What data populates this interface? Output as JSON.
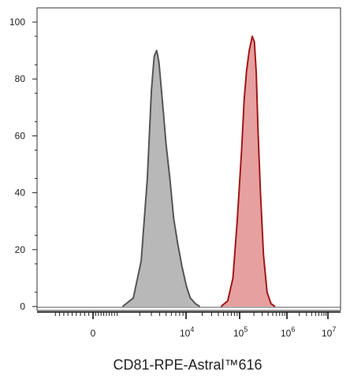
{
  "chart_data": {
    "type": "area",
    "title": "",
    "xlabel": "CD81-RPE-Astral™616",
    "ylabel": "",
    "x_scale": "biexponential",
    "x_tick_labels": [
      {
        "value": 0,
        "base": "0",
        "exp": ""
      },
      {
        "value": 10000,
        "base": "10",
        "exp": "4"
      },
      {
        "value": 100000,
        "base": "10",
        "exp": "5"
      },
      {
        "value": 1000000,
        "base": "10",
        "exp": "6"
      },
      {
        "value": 10000000,
        "base": "10",
        "exp": "7"
      }
    ],
    "ylim": [
      0,
      105
    ],
    "y_ticks": [
      0,
      20,
      40,
      60,
      80,
      100
    ],
    "grid": false,
    "legend": "none",
    "series": [
      {
        "color": "#555555",
        "fill": "#b8b8b8",
        "points": [
          [
            1100,
            0
          ],
          [
            1600,
            3
          ],
          [
            2100,
            16
          ],
          [
            2600,
            45
          ],
          [
            3000,
            76
          ],
          [
            3300,
            88
          ],
          [
            3600,
            90
          ],
          [
            3900,
            86
          ],
          [
            4400,
            72
          ],
          [
            5000,
            57
          ],
          [
            5700,
            45
          ],
          [
            6500,
            31
          ],
          [
            7500,
            22
          ],
          [
            8700,
            14
          ],
          [
            10200,
            7
          ],
          [
            12000,
            3
          ],
          [
            15000,
            1
          ],
          [
            18000,
            0
          ]
        ]
      },
      {
        "color": "#a01818",
        "fill": "#e6a0a0",
        "points": [
          [
            45000,
            0
          ],
          [
            60000,
            2
          ],
          [
            75000,
            10
          ],
          [
            90000,
            30
          ],
          [
            110000,
            55
          ],
          [
            125000,
            73
          ],
          [
            140000,
            83
          ],
          [
            160000,
            90
          ],
          [
            185000,
            95
          ],
          [
            205000,
            93
          ],
          [
            225000,
            82
          ],
          [
            245000,
            62
          ],
          [
            275000,
            40
          ],
          [
            320000,
            18
          ],
          [
            380000,
            5
          ],
          [
            460000,
            1
          ],
          [
            560000,
            0
          ]
        ]
      }
    ]
  }
}
